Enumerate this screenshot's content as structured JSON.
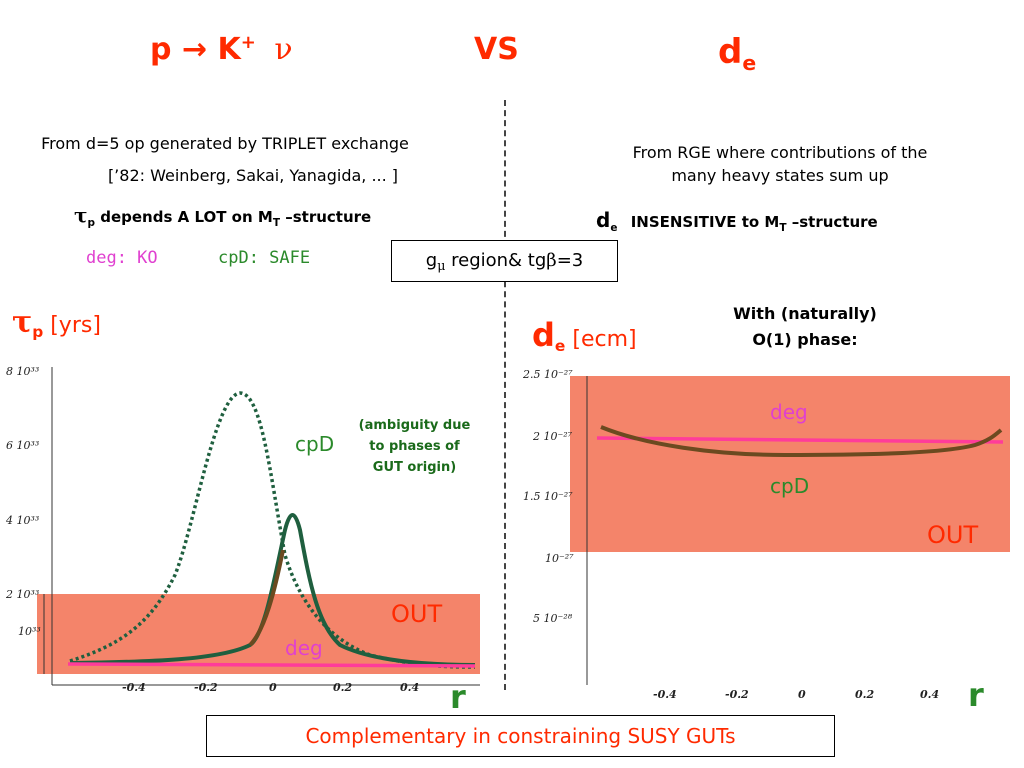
{
  "header": {
    "left_title": "p → K⁺ ν",
    "left_p": "p",
    "left_arrow": "→",
    "left_k": "K",
    "left_plus": "+",
    "left_nu": "ν",
    "center_title": "VS",
    "right_d": "d",
    "right_e": "e"
  },
  "left_text": {
    "line1": "From d=5 op generated by TRIPLET exchange",
    "line2": "[’82: Weinberg, Sakai, Yanagida, ... ]",
    "tau": "τ",
    "tau_sub": "p",
    "depends": "depends A LOT on M",
    "depends_sub": "T",
    "depends_end": "–structure",
    "deg_label": "deg: KO",
    "cpd_label": "cpD: SAFE"
  },
  "right_text": {
    "line1": "From RGE where contributions of the",
    "line2": "many heavy states sum up",
    "d": "d",
    "d_sub": "e",
    "insensitive": "INSENSITIVE to M",
    "insensitive_sub": "T",
    "insensitive_end": "–structure",
    "with1": "With (naturally)",
    "with2": "O(1) phase:"
  },
  "center_box": {
    "g": "g",
    "mu": "μ",
    "rest": " region& tg",
    "beta": "β",
    "end": "=3"
  },
  "left_plot": {
    "axis_tau": "τ",
    "axis_tau_sub": "p",
    "axis_unit": "[yrs]",
    "y_ticks": [
      "8 10³³",
      "6 10³³",
      "4 10³³",
      "2 10³³",
      "10³³"
    ],
    "x_ticks": [
      "-0.4",
      "-0.2",
      "0",
      "0.2",
      "0.4"
    ],
    "cpd": "cpD",
    "ambiguity1": "(ambiguity due",
    "ambiguity2": "to phases of",
    "ambiguity3": "GUT origin)",
    "out": "OUT",
    "deg": "deg",
    "r": "r"
  },
  "right_plot": {
    "axis_d": "d",
    "axis_d_sub": "e",
    "axis_unit": "[ecm]",
    "y_ticks": [
      "2.5 10⁻²⁷",
      "2 10⁻²⁷",
      "1.5 10⁻²⁷",
      "10⁻²⁷",
      "5 10⁻²⁸"
    ],
    "x_ticks": [
      "-0.4",
      "-0.2",
      "0",
      "0.2",
      "0.4"
    ],
    "deg": "deg",
    "cpd": "cpD",
    "out": "OUT",
    "r": "r"
  },
  "footer": {
    "text": "Complementary in constraining SUSY GUTs"
  },
  "colors": {
    "title_red": "#ff2a00",
    "out_region": "#f4846a",
    "deg_pink": "#ff3c9a",
    "cpd_dark_green": "#1f5f3f",
    "cpd_brown": "#6b4a20",
    "label_green": "#2b8a2b",
    "label_magenta": "#e040d0"
  }
}
